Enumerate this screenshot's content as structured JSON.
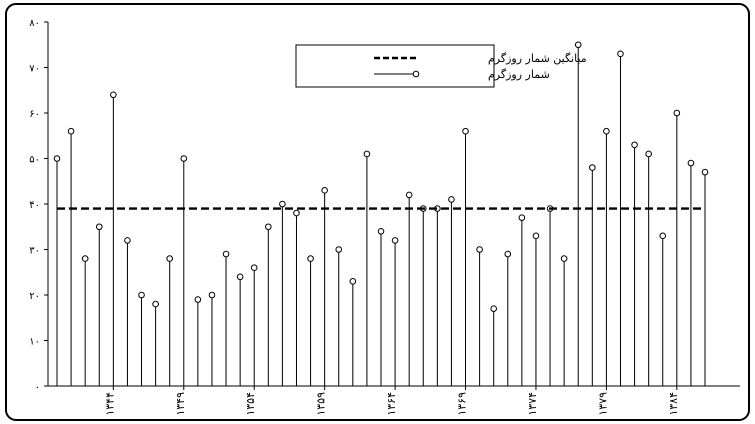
{
  "chart_data": {
    "type": "stem",
    "grid": false,
    "legend_position": "top-center",
    "ylim": [
      0,
      80
    ],
    "y_ticks": [
      "۰",
      "۱۰",
      "۲۰",
      "۳۰",
      "۴۰",
      "۵۰",
      "۶۰",
      "۷۰",
      "۸۰"
    ],
    "y_tick_values": [
      0,
      10,
      20,
      30,
      40,
      50,
      60,
      70,
      80
    ],
    "x_ticks": [
      "۱۳۴۴",
      "۱۳۴۹",
      "۱۳۵۴",
      "۱۳۵۹",
      "۱۳۶۴",
      "۱۳۶۹",
      "۱۳۷۴",
      "۱۳۷۹",
      "۱۳۸۴"
    ],
    "x_tick_positions": [
      1344,
      1349,
      1354,
      1359,
      1364,
      1369,
      1374,
      1379,
      1384
    ],
    "x_range": [
      1340,
      1386
    ],
    "series": [
      {
        "name": "شمار روزگرم",
        "style": "stem",
        "x": [
          1340,
          1341,
          1342,
          1343,
          1344,
          1345,
          1346,
          1347,
          1348,
          1349,
          1350,
          1351,
          1352,
          1353,
          1354,
          1355,
          1356,
          1357,
          1358,
          1359,
          1360,
          1361,
          1362,
          1363,
          1364,
          1365,
          1366,
          1367,
          1368,
          1369,
          1370,
          1371,
          1372,
          1373,
          1374,
          1375,
          1376,
          1377,
          1378,
          1379,
          1380,
          1381,
          1382,
          1383,
          1384,
          1385,
          1386
        ],
        "values": [
          50,
          56,
          28,
          35,
          64,
          32,
          20,
          18,
          28,
          50,
          19,
          20,
          29,
          24,
          26,
          35,
          40,
          38,
          28,
          43,
          30,
          23,
          51,
          34,
          32,
          42,
          39,
          39,
          41,
          56,
          30,
          17,
          29,
          37,
          33,
          39,
          28,
          75,
          48,
          56,
          73,
          53,
          51,
          33,
          60,
          49,
          47
        ]
      },
      {
        "name": "میانگین شمار روزگرم",
        "style": "dashed",
        "value": 39
      }
    ]
  }
}
